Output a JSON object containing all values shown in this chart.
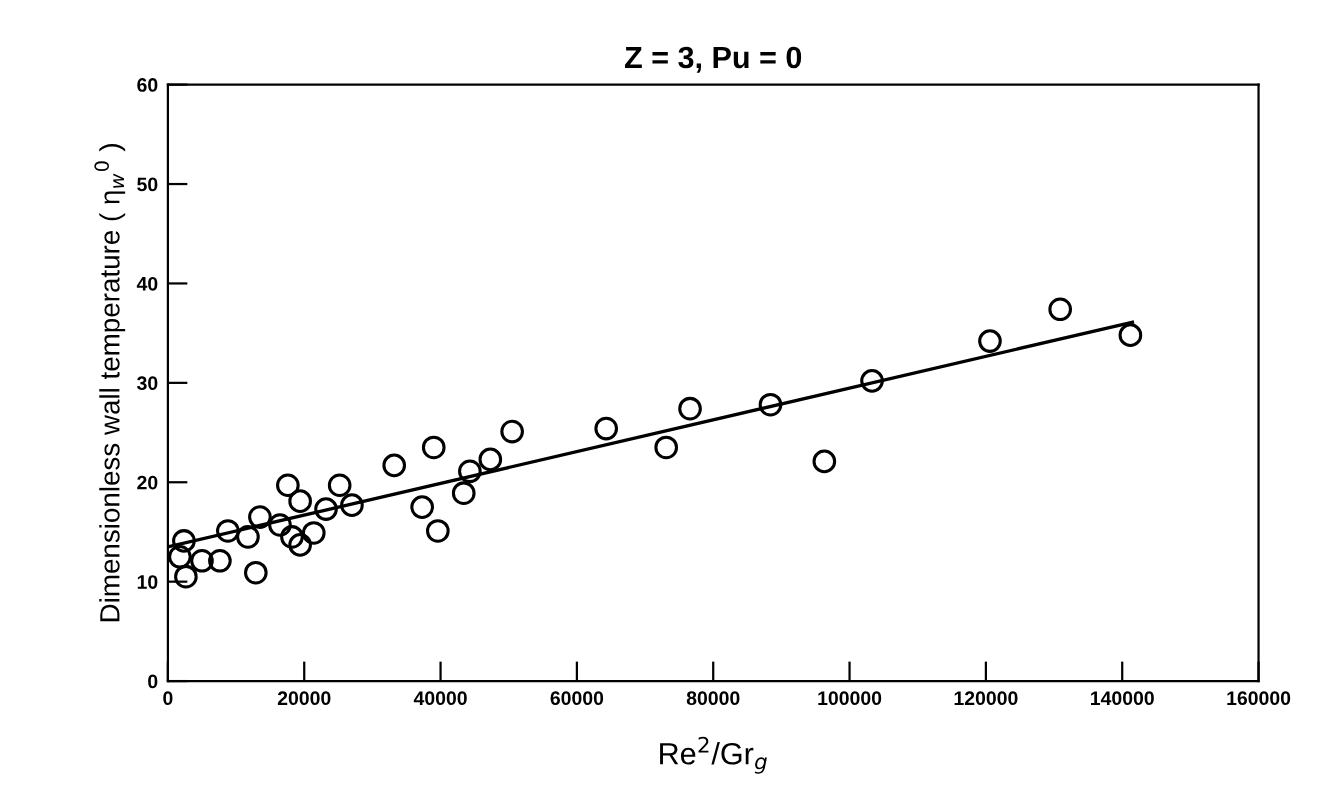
{
  "chart_data": {
    "type": "scatter",
    "title": "Z = 3, Pu = 0",
    "xlabel": "Re$^{2}$/Gr$_{g}$",
    "ylabel": "Dimensionless wall temperature ( η$_{w}$$^{0}$ )",
    "xlim": [
      0,
      160000
    ],
    "xticks": [
      0,
      20000,
      40000,
      60000,
      80000,
      100000,
      120000,
      140000,
      160000
    ],
    "ylim": [
      0,
      60
    ],
    "yticks": [
      0,
      10,
      20,
      30,
      40,
      50,
      60
    ],
    "grid": false,
    "legend": false,
    "series": [
      {
        "marker": "circle",
        "color": "#000000",
        "x": [
          1760,
          2350,
          2640,
          5000,
          7630,
          8800,
          11740,
          12900,
          13500,
          16440,
          17600,
          18200,
          19400,
          19400,
          21400,
          23200,
          25200,
          27000,
          33200,
          37300,
          39000,
          39600,
          43400,
          44300,
          47300,
          50500,
          64300,
          73100,
          76600,
          88400,
          96300,
          103300,
          120600,
          130900,
          141200
        ],
        "values": [
          12.5,
          14.1,
          10.5,
          12.1,
          12.1,
          15.1,
          14.5,
          10.9,
          16.5,
          15.7,
          19.7,
          14.5,
          18.1,
          13.7,
          14.9,
          17.3,
          19.7,
          17.7,
          21.7,
          17.5,
          23.5,
          15.1,
          18.9,
          21.1,
          22.3,
          25.1,
          25.4,
          23.5,
          27.4,
          27.8,
          22.1,
          30.2,
          34.2,
          37.4,
          34.8
        ]
      },
      {
        "type": "line",
        "marker": "none",
        "line_style": "solid",
        "color": "#000000",
        "x": [
          0,
          141500
        ],
        "values": [
          13.5,
          36.1
        ]
      }
    ]
  }
}
